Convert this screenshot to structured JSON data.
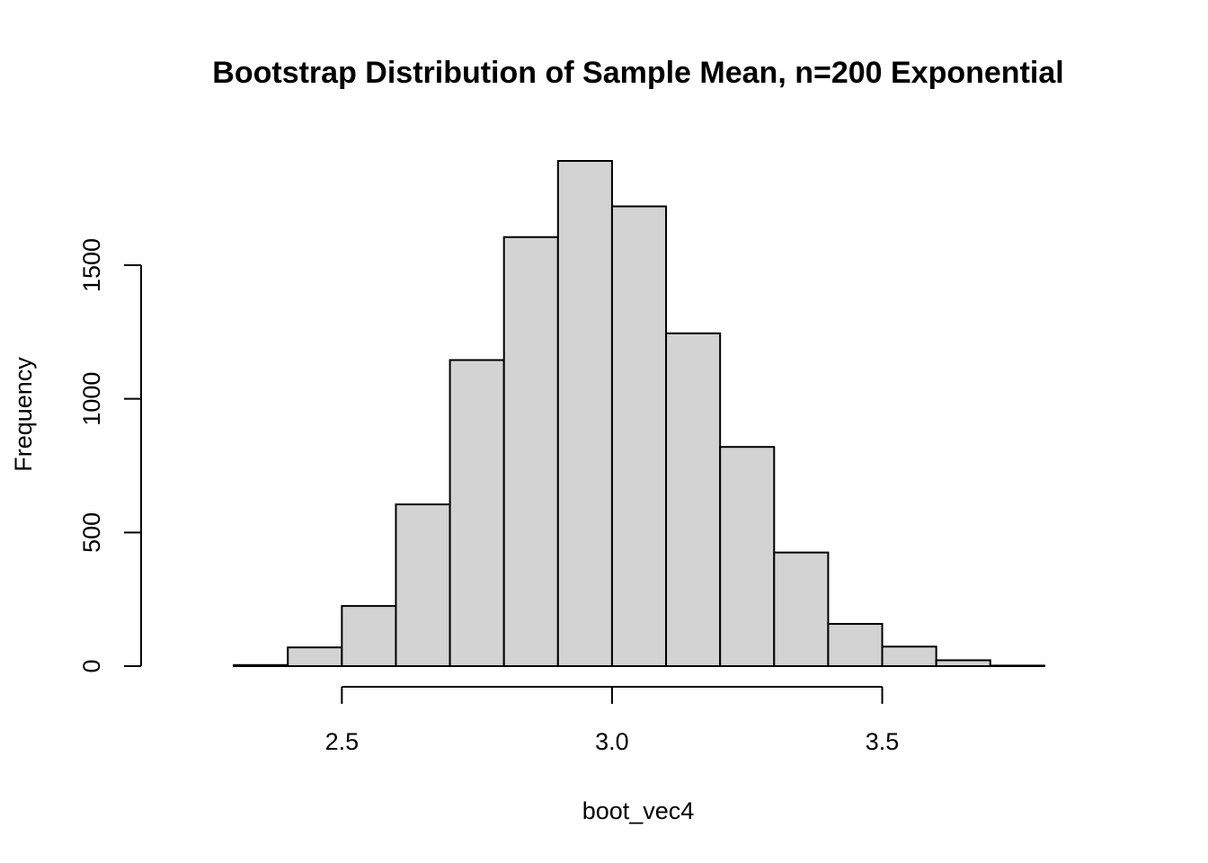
{
  "chart_data": {
    "type": "bar",
    "title": "Bootstrap Distribution of Sample Mean, n=200 Exponential",
    "xlabel": "boot_vec4",
    "ylabel": "Frequency",
    "bins": [
      {
        "x0": 2.2,
        "x1": 2.3,
        "count": 0
      },
      {
        "x0": 2.3,
        "x1": 2.4,
        "count": 4
      },
      {
        "x0": 2.4,
        "x1": 2.5,
        "count": 70
      },
      {
        "x0": 2.5,
        "x1": 2.6,
        "count": 225
      },
      {
        "x0": 2.6,
        "x1": 2.7,
        "count": 605
      },
      {
        "x0": 2.7,
        "x1": 2.8,
        "count": 1145
      },
      {
        "x0": 2.8,
        "x1": 2.9,
        "count": 1605
      },
      {
        "x0": 2.9,
        "x1": 3.0,
        "count": 1890
      },
      {
        "x0": 3.0,
        "x1": 3.1,
        "count": 1720
      },
      {
        "x0": 3.1,
        "x1": 3.2,
        "count": 1245
      },
      {
        "x0": 3.2,
        "x1": 3.3,
        "count": 820
      },
      {
        "x0": 3.3,
        "x1": 3.4,
        "count": 425
      },
      {
        "x0": 3.4,
        "x1": 3.5,
        "count": 158
      },
      {
        "x0": 3.5,
        "x1": 3.6,
        "count": 73
      },
      {
        "x0": 3.6,
        "x1": 3.7,
        "count": 22
      },
      {
        "x0": 3.7,
        "x1": 3.8,
        "count": 2
      },
      {
        "x0": 3.8,
        "x1": 3.9,
        "count": 0
      }
    ],
    "xticks": [
      2.5,
      3.0,
      3.5
    ],
    "xtick_labels": [
      "2.5",
      "3.0",
      "3.5"
    ],
    "yticks": [
      0,
      500,
      1000,
      1500
    ],
    "ytick_labels": [
      "0",
      "500",
      "1000",
      "1500"
    ],
    "xlim": [
      2.2,
      3.9
    ],
    "ylim": [
      0,
      1890
    ],
    "grid": false,
    "bar_color": "#d3d3d3"
  }
}
